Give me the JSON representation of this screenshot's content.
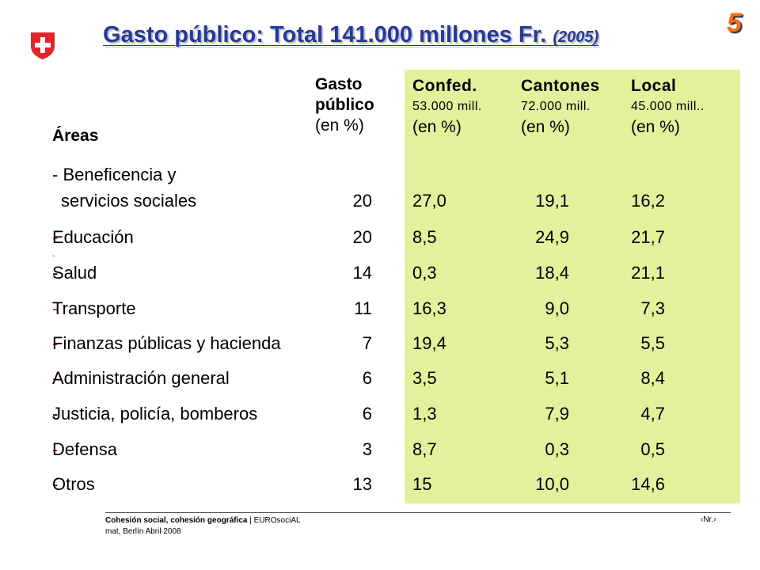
{
  "slide_number": "5",
  "title": {
    "main": "Gasto público: Total 141.000 millones Fr.",
    "year": "(2005)"
  },
  "header": {
    "areas": "Áreas",
    "gasto_line1": "Gasto",
    "gasto_line2": "público",
    "gasto_line3": "(en %)",
    "columns": [
      {
        "name": "Confed.",
        "mill": "53.000 mill.",
        "unit": "(en %)"
      },
      {
        "name": "Cantones",
        "mill": "72.000 mill.",
        "unit": "(en %)"
      },
      {
        "name": "Local",
        "mill": "45.000 mill..",
        "unit": "(en %)"
      }
    ]
  },
  "rows": [
    {
      "label_line1": "- Beneficencia y",
      "label_line2": "servicios sociales",
      "gasto": "20",
      "confed": "27,0",
      "cantones": "19,1",
      "local": "16,2"
    },
    {
      "label": "Educación",
      "gasto": "20",
      "confed": "8,5",
      "cantones": "24,9",
      "local": "21,7"
    },
    {
      "label": "Salud",
      "gasto": "14",
      "confed": "0,3",
      "cantones": "18,4",
      "local": "21,1"
    },
    {
      "label": "Transporte",
      "gasto": "11",
      "confed": "16,3",
      "cantones": "9,0",
      "local": "7,3"
    },
    {
      "label": "Finanzas públicas y hacienda",
      "gasto": "7",
      "confed": "19,4",
      "cantones": "5,3",
      "local": "5,5"
    },
    {
      "label": "Administración general",
      "gasto": "6",
      "confed": "3,5",
      "cantones": "5,1",
      "local": "8,4"
    },
    {
      "label": "Justicia, policía, bomberos",
      "gasto": "6",
      "confed": "1,3",
      "cantones": "7,9",
      "local": "4,7"
    },
    {
      "label": "Defensa",
      "gasto": "3",
      "confed": "8,7",
      "cantones": "0,3",
      "local": "0,5"
    },
    {
      "label": "Otros",
      "gasto": "13",
      "confed": "15",
      "cantones": "10,0",
      "local": "14,6"
    }
  ],
  "dash": "-",
  "footer": {
    "bold": "Cohesión social, cohesión geográfica",
    "rest": " | EUROsociAL",
    "line2": "mat, Berlín Abril 2008",
    "page": "‹Nr.›"
  },
  "colors": {
    "title": "#27389a",
    "panel": "#e2f19c",
    "accent_dash": "#e0241c",
    "slide_number": "#ff6a16",
    "flag": "#e3242b"
  }
}
